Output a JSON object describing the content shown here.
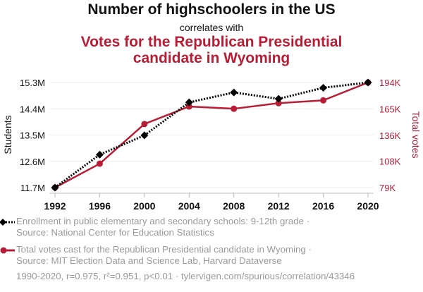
{
  "header": {
    "title": "Number of highschoolers in the US",
    "connector": "correlates with",
    "subtitle": "Votes for the Republican Presidential candidate in Wyoming"
  },
  "colors": {
    "series1": "#000000",
    "series2": "#b81d36",
    "legend_text": "#9a9a9a",
    "grid": "#eeeeee"
  },
  "chart_data": {
    "type": "line",
    "title": "Number of highschoolers in the US correlates with Votes for the Republican Presidential candidate in Wyoming",
    "x": [
      1992,
      1996,
      2000,
      2004,
      2008,
      2012,
      2016,
      2020
    ],
    "x_tick_labels": [
      "1992",
      "1996",
      "2000",
      "2004",
      "2008",
      "2012",
      "2016",
      "2020"
    ],
    "xlabel": "",
    "y_left": {
      "label": "Students",
      "range": [
        11.7,
        15.3
      ],
      "ticks": [
        11.7,
        12.6,
        13.5,
        14.4,
        15.3
      ],
      "tick_labels": [
        "11.7M",
        "12.6M",
        "13.5M",
        "14.4M",
        "15.3M"
      ],
      "unit": "millions"
    },
    "y_right": {
      "label": "Total votes",
      "range": [
        79,
        194
      ],
      "ticks": [
        79,
        108,
        136,
        165,
        194
      ],
      "tick_labels": [
        "79K",
        "108K",
        "136K",
        "165K",
        "194K"
      ],
      "unit": "thousands"
    },
    "grid": true,
    "legend_position": "bottom",
    "series": [
      {
        "name": "Enrollment in public elementary and secondary schools: 9-12th grade",
        "axis": "left",
        "style": "dotted",
        "marker": "diamond",
        "color": "#000000",
        "values": [
          11.7,
          12.83,
          13.49,
          14.62,
          14.96,
          14.74,
          15.12,
          15.3
        ]
      },
      {
        "name": "Total votes cast for the Republican Presidential candidate in Wyoming",
        "axis": "right",
        "style": "solid",
        "marker": "circle",
        "color": "#b81d36",
        "values": [
          79,
          105.2,
          148.6,
          167.8,
          165.3,
          171.4,
          174.5,
          194
        ]
      }
    ]
  },
  "legend": [
    {
      "line1": "Enrollment in public elementary and secondary schools: 9-12th grade ·",
      "line2": "Source: National Center for Education Statistics"
    },
    {
      "line1": "Total votes cast for the Republican Presidential candidate in Wyoming ·",
      "line2": "Source: MIT Election Data and Science Lab, Harvard Dataverse"
    }
  ],
  "footer": "1990-2020, r=0.975, r²=0.951, p<0.01 · tylervigen.com/spurious/correlation/43346"
}
